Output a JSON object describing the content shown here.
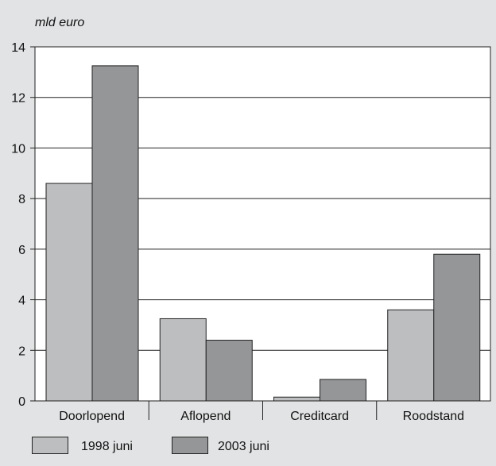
{
  "chart_data": {
    "type": "bar",
    "ylabel": "mld euro",
    "ylim": [
      0,
      14
    ],
    "yticks": [
      0,
      2,
      4,
      6,
      8,
      10,
      12,
      14
    ],
    "categories": [
      "Doorlopend",
      "Aflopend",
      "Creditcard",
      "Roodstand"
    ],
    "series": [
      {
        "name": "1998 juni",
        "values": [
          8.6,
          3.25,
          0.15,
          3.6
        ],
        "color": "#bdbebf"
      },
      {
        "name": "2003 juni",
        "values": [
          13.25,
          2.4,
          0.85,
          5.8
        ],
        "color": "#959697"
      }
    ],
    "grid": true,
    "legend_position": "bottom-left"
  },
  "colors": {
    "background": "#e2e3e4",
    "plot_background": "#ffffff",
    "gridline": "#222222",
    "bar_border": "#222222"
  }
}
